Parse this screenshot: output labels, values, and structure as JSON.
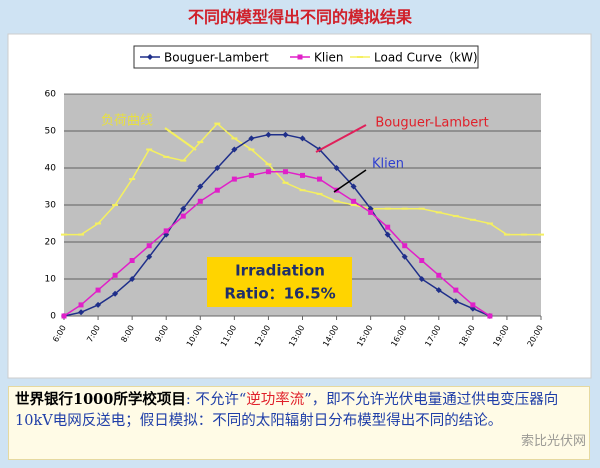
{
  "chart_data": {
    "type": "line",
    "title": "不同的模型得出不同的模拟结果",
    "x": [
      6,
      6.5,
      7,
      7.5,
      8,
      8.5,
      9,
      9.5,
      10,
      10.5,
      11,
      11.5,
      12,
      12.5,
      13,
      13.5,
      14,
      14.5,
      15,
      15.5,
      16,
      16.5,
      17,
      17.5,
      18,
      18.5,
      19,
      19.5,
      20
    ],
    "series": [
      {
        "name": "Bouguer-Lambert",
        "color": "#1f2f8a",
        "marker": "diamond",
        "values": [
          0,
          1,
          3,
          6,
          10,
          16,
          22,
          29,
          35,
          40,
          45,
          48,
          49,
          49,
          48,
          45,
          40,
          35,
          29,
          22,
          16,
          10,
          7,
          4,
          2,
          0,
          null,
          null,
          null
        ]
      },
      {
        "name": "Klien",
        "color": "#e020c8",
        "marker": "square",
        "values": [
          0,
          3,
          7,
          11,
          15,
          19,
          23,
          27,
          31,
          34,
          37,
          38,
          39,
          39,
          38,
          37,
          34,
          31,
          28,
          24,
          19,
          15,
          11,
          7,
          3,
          0,
          null,
          null,
          null
        ]
      },
      {
        "name": "Load Curve（kW)",
        "color": "#f5f060",
        "marker": "dash",
        "values": [
          22,
          22,
          25,
          30,
          37,
          45,
          43,
          42,
          47,
          52,
          48,
          45,
          41,
          36,
          34,
          33,
          31,
          30,
          29,
          29,
          29,
          29,
          28,
          27,
          26,
          25,
          22,
          22,
          22
        ]
      }
    ],
    "xlim": [
      6,
      20
    ],
    "xticks": [
      {
        "value": 6,
        "label": "6:00"
      },
      {
        "value": 7,
        "label": "7:00"
      },
      {
        "value": 8,
        "label": "8:00"
      },
      {
        "value": 9,
        "label": "9:00"
      },
      {
        "value": 10,
        "label": "10:00"
      },
      {
        "value": 11,
        "label": "11:00"
      },
      {
        "value": 12,
        "label": "12:00"
      },
      {
        "value": 13,
        "label": "13:00"
      },
      {
        "value": 14,
        "label": "14:00"
      },
      {
        "value": 15,
        "label": "15:00"
      },
      {
        "value": 16,
        "label": "16:00"
      },
      {
        "value": 17,
        "label": "17:00"
      },
      {
        "value": 18,
        "label": "18:00"
      },
      {
        "value": 19,
        "label": "19:00"
      },
      {
        "value": 20,
        "label": "20:00"
      }
    ],
    "ylim": [
      0,
      60
    ],
    "yticks": [
      0,
      10,
      20,
      30,
      40,
      50,
      60
    ],
    "grid": true,
    "legend": "top",
    "annotations": [
      "负荷曲线",
      "Bouguer-Lambert",
      "Klien",
      "Irradiation",
      "Ratio：16.5%"
    ],
    "footer": [
      "世界银行1000所学校项目",
      ": 不允许“",
      "逆功率流",
      "”，即不允许光伏电量通过供电变压器向10kV电网反送电；假日模拟：不同的太阳辐射日分布模型得出不同的结论。"
    ],
    "watermark": "索比光伏网"
  }
}
